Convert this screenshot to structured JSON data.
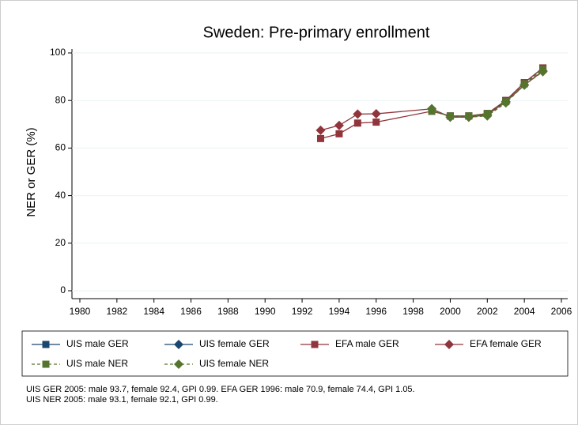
{
  "chart_data": {
    "type": "line",
    "title": "Sweden: Pre-primary enrollment",
    "y_label": "NER or GER (%)",
    "x": [
      1993,
      1994,
      1995,
      1996,
      1999,
      2000,
      2001,
      2002,
      2003,
      2004,
      2005
    ],
    "xlim": [
      1980,
      2006
    ],
    "xticks": [
      1980,
      1982,
      1984,
      1986,
      1988,
      1990,
      1992,
      1994,
      1996,
      1998,
      2000,
      2002,
      2004,
      2006
    ],
    "ylim": [
      0,
      100
    ],
    "yticks": [
      0,
      20,
      40,
      60,
      80,
      100
    ],
    "grid": true,
    "series": [
      {
        "name": "UIS male GER",
        "color": "#1a476f",
        "marker": "square",
        "line_style": "solid",
        "values": [
          null,
          null,
          null,
          null,
          75.5,
          73.5,
          73.5,
          74.5,
          80,
          87.5,
          93.7
        ]
      },
      {
        "name": "UIS female GER",
        "color": "#1a476f",
        "marker": "diamond",
        "line_style": "solid",
        "values": [
          null,
          null,
          null,
          null,
          76.5,
          73,
          73,
          74,
          79.5,
          86.5,
          92.4
        ]
      },
      {
        "name": "EFA male GER",
        "color": "#90353b",
        "marker": "square",
        "line_style": "solid",
        "values": [
          64,
          66,
          70.5,
          70.9,
          75.5,
          73.5,
          73.5,
          74.5,
          80,
          87.5,
          93.7
        ]
      },
      {
        "name": "EFA female GER",
        "color": "#90353b",
        "marker": "diamond",
        "line_style": "solid",
        "values": [
          67.5,
          69.5,
          74.3,
          74.4,
          76.5,
          73,
          73,
          74,
          79.5,
          86.5,
          92.4
        ]
      },
      {
        "name": "UIS male NER",
        "color": "#55752f",
        "marker": "square",
        "line_style": "dashed",
        "values": [
          null,
          null,
          null,
          null,
          75.5,
          73.5,
          73.5,
          74.5,
          79.5,
          87,
          93.1
        ]
      },
      {
        "name": "UIS female NER",
        "color": "#55752f",
        "marker": "diamond",
        "line_style": "dashed",
        "values": [
          null,
          null,
          null,
          null,
          76.5,
          73,
          73,
          73.5,
          79,
          86.5,
          92.1
        ]
      }
    ],
    "notes": [
      "UIS GER 2005: male 93.7, female 92.4, GPI 0.99. EFA GER 1996: male 70.9, female 74.4, GPI 1.05.",
      "UIS NER 2005: male 93.1, female 92.1, GPI 0.99."
    ]
  }
}
